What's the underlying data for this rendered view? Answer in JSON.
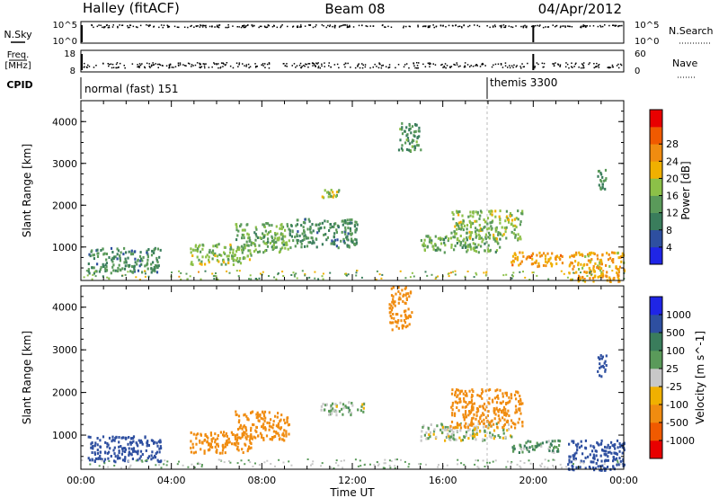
{
  "header": {
    "site": "Halley (fitACF)",
    "beam": "Beam 08",
    "date": "04/Apr/2012"
  },
  "strip_panels": {
    "nsky": {
      "label": "N.Sky",
      "ticks": [
        "10^5",
        "10^0"
      ],
      "right_ticks": [
        "10^5",
        "10^0"
      ],
      "right_label": "N.Search"
    },
    "freq": {
      "label_line1": "Freq.",
      "label_line2": "[MHz]",
      "ticks": [
        "18",
        "8"
      ],
      "right_ticks": [
        "60",
        "0"
      ],
      "right_label": "Nave"
    },
    "cpid": {
      "label": "CPID",
      "segments": [
        {
          "name": "normal (fast) 151"
        },
        {
          "name": "themis 3300"
        }
      ]
    }
  },
  "colors": {
    "power": [
      "#1f25e6",
      "#2e4fa0",
      "#3a7d5c",
      "#5a9a5a",
      "#8cc048",
      "#f0b000",
      "#f08c10",
      "#f05a00",
      "#e80000"
    ],
    "velocity": [
      "#1f25e6",
      "#2e4fa0",
      "#3a7d5c",
      "#5a9a5a",
      "#c8c8c8",
      "#f0b000",
      "#f08c10",
      "#f05a00",
      "#e80000"
    ]
  },
  "chart_data": [
    {
      "type": "heatmap",
      "title": "",
      "ylabel": "Slant Range [km]",
      "y_ticks": [
        "1000",
        "2000",
        "3000",
        "4000"
      ],
      "ylim": [
        200,
        4500
      ],
      "xlim": [
        0,
        24
      ],
      "colorbar": {
        "label": "Power [dB]",
        "ticks": [
          "4",
          "8",
          "12",
          "16",
          "20",
          "24",
          "28"
        ],
        "range": [
          0,
          30
        ]
      },
      "regions": [
        {
          "t": [
            0.3,
            3.5
          ],
          "r": [
            400,
            1000
          ],
          "v": 9
        },
        {
          "t": [
            4.8,
            7.5
          ],
          "r": [
            600,
            1100
          ],
          "v": 14
        },
        {
          "t": [
            6.8,
            9.2
          ],
          "r": [
            900,
            1600
          ],
          "v": 13
        },
        {
          "t": [
            9.2,
            12.2
          ],
          "r": [
            1000,
            1700
          ],
          "v": 9
        },
        {
          "t": [
            10.6,
            11.5
          ],
          "r": [
            2200,
            2400
          ],
          "v": 15
        },
        {
          "t": [
            14.0,
            15.0
          ],
          "r": [
            3300,
            4000
          ],
          "v": 10
        },
        {
          "t": [
            15.0,
            18.5
          ],
          "r": [
            900,
            1300
          ],
          "v": 12
        },
        {
          "t": [
            16.3,
            19.5
          ],
          "r": [
            1200,
            1900
          ],
          "v": 14
        },
        {
          "t": [
            19.0,
            21.3
          ],
          "r": [
            550,
            900
          ],
          "v": 21
        },
        {
          "t": [
            21.5,
            24.0
          ],
          "r": [
            200,
            900
          ],
          "v": 20
        },
        {
          "t": [
            22.8,
            23.2
          ],
          "r": [
            2400,
            2900
          ],
          "v": 10
        }
      ]
    },
    {
      "type": "heatmap",
      "title": "",
      "xlabel": "Time UT",
      "ylabel": "Slant Range [km]",
      "x_ticks": [
        "00:00",
        "04:00",
        "08:00",
        "12:00",
        "16:00",
        "20:00",
        "00:00"
      ],
      "y_ticks": [
        "1000",
        "2000",
        "3000",
        "4000"
      ],
      "ylim": [
        200,
        4500
      ],
      "xlim": [
        0,
        24
      ],
      "colorbar": {
        "label": "Velocity [m s^-1]",
        "ticks": [
          "1000",
          "500",
          "100",
          "25",
          "-25",
          "-100",
          "-500",
          "-1000"
        ],
        "range": [
          -1000,
          1000
        ]
      },
      "regions": [
        {
          "t": [
            0.3,
            3.5
          ],
          "r": [
            400,
            1000
          ],
          "v": 150
        },
        {
          "t": [
            4.8,
            7.5
          ],
          "r": [
            600,
            1100
          ],
          "v": -300
        },
        {
          "t": [
            6.8,
            9.2
          ],
          "r": [
            900,
            1600
          ],
          "v": -350
        },
        {
          "t": [
            10.5,
            12.5
          ],
          "r": [
            1500,
            1800
          ],
          "v": 0
        },
        {
          "t": [
            13.6,
            14.6
          ],
          "r": [
            3500,
            4500
          ],
          "v": -200
        },
        {
          "t": [
            15.0,
            19.0
          ],
          "r": [
            900,
            1300
          ],
          "v": -10
        },
        {
          "t": [
            16.3,
            19.5
          ],
          "r": [
            1200,
            2100
          ],
          "v": -250
        },
        {
          "t": [
            19.0,
            21.3
          ],
          "r": [
            600,
            900
          ],
          "v": 20
        },
        {
          "t": [
            21.5,
            24.0
          ],
          "r": [
            200,
            900
          ],
          "v": 150
        },
        {
          "t": [
            22.8,
            23.2
          ],
          "r": [
            2400,
            2900
          ],
          "v": 200
        }
      ]
    }
  ]
}
